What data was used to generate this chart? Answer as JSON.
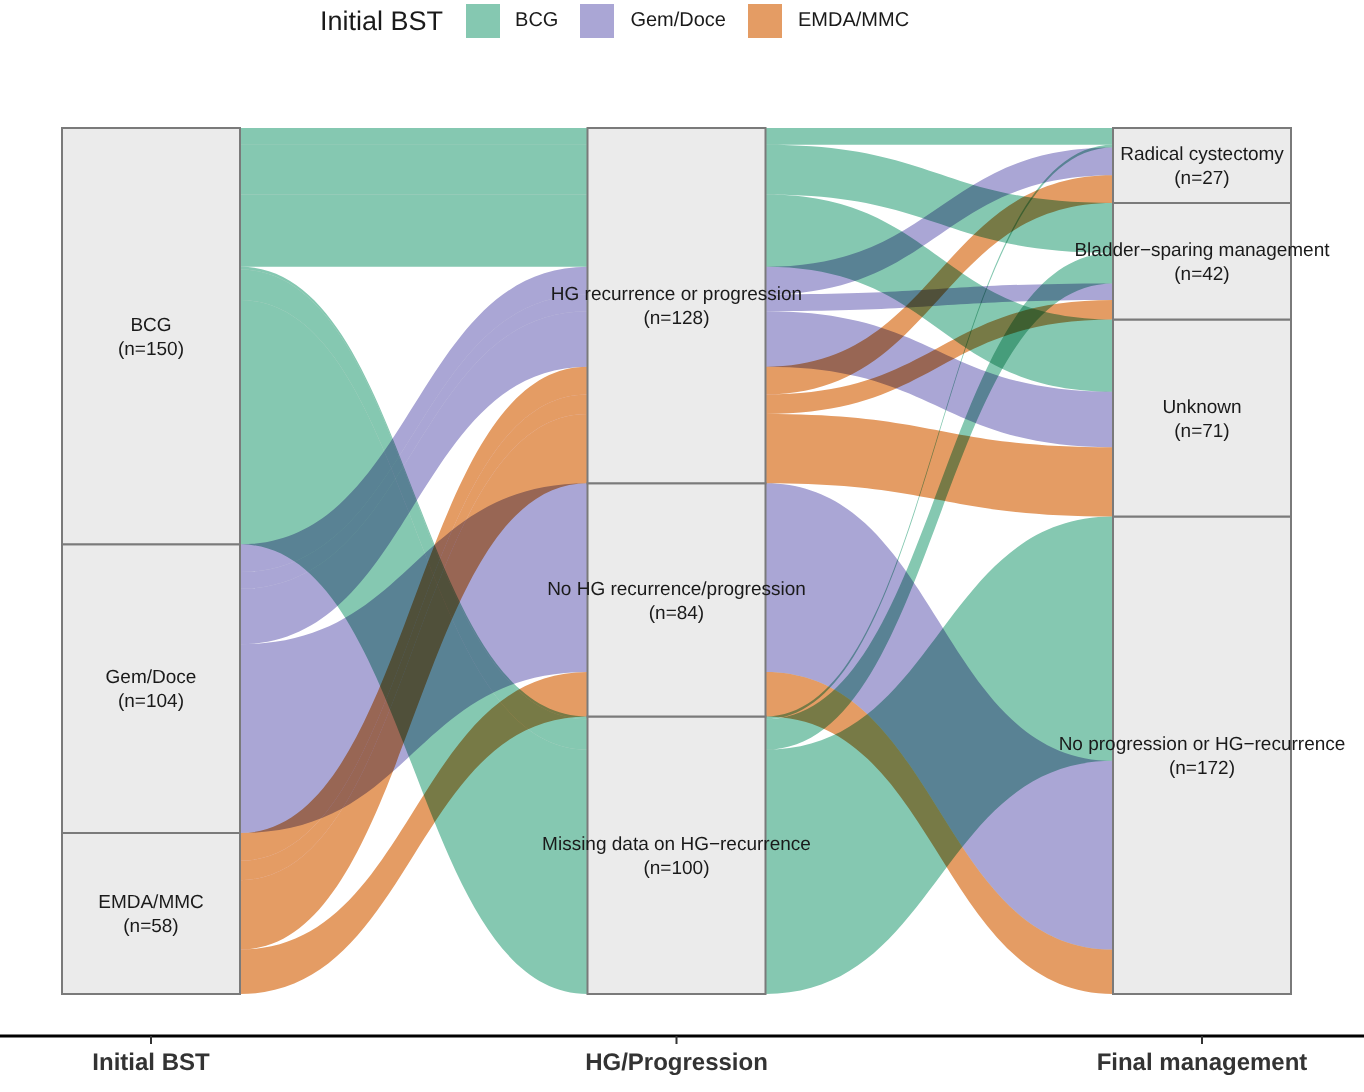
{
  "chart_data": {
    "type": "bar",
    "stacked": true,
    "legend_title": "Initial BST",
    "legend": "top",
    "tick_labels": "x",
    "categories": [
      "Initial BST",
      "HG/Progression",
      "Final management"
    ],
    "series": [
      {
        "type": "bar",
        "name": "EMDA/MMC",
        "color": "#ebebeb",
        "values": [
          58,
          null,
          null
        ],
        "value_labels": [
          "(n=58)",
          null,
          null
        ]
      },
      {
        "type": "bar",
        "name": "Gem/Doce",
        "color": "#ebebeb",
        "values": [
          104,
          null,
          null
        ],
        "value_labels": [
          "(n=104)",
          null,
          null
        ]
      },
      {
        "type": "bar",
        "name": "BCG",
        "color": "#ebebeb",
        "values": [
          150,
          null,
          null
        ],
        "value_labels": [
          "(n=150)",
          null,
          null
        ]
      },
      {
        "type": "bar",
        "name": "Missing data on HG−recurrence",
        "color": "#ebebeb",
        "values": [
          null,
          100,
          null
        ],
        "value_labels": [
          null,
          "(n=100)",
          null
        ]
      },
      {
        "type": "bar",
        "name": "No HG recurrence/progression",
        "color": "#ebebeb",
        "values": [
          null,
          84,
          null
        ],
        "value_labels": [
          null,
          "(n=84)",
          null
        ]
      },
      {
        "type": "bar",
        "name": "HG recurrence or progression",
        "color": "#ebebeb",
        "values": [
          null,
          128,
          null
        ],
        "value_labels": [
          null,
          "(n=128)",
          null
        ]
      },
      {
        "type": "bar",
        "name": "No progression or HG−recurrence",
        "color": "#ebebeb",
        "values": [
          null,
          null,
          172
        ],
        "value_labels": [
          null,
          null,
          "(n=172)"
        ]
      },
      {
        "type": "bar",
        "name": "Unknown",
        "color": "#ebebeb",
        "values": [
          null,
          null,
          71
        ],
        "value_labels": [
          null,
          null,
          "(n=71)"
        ]
      },
      {
        "type": "bar",
        "name": "Bladder−sparing management",
        "color": "#ebebeb",
        "values": [
          null,
          null,
          42
        ],
        "value_labels": [
          null,
          null,
          "(n=42)"
        ]
      },
      {
        "type": "bar",
        "name": "Radical cystectomy",
        "color": "#ebebeb",
        "values": [
          null,
          null,
          27
        ],
        "value_labels": [
          null,
          null,
          "(n=27)"
        ]
      },
      {
        "type": "other",
        "name": "BCG",
        "color": "#85c8b1",
        "values": [
          null,
          null,
          null
        ]
      },
      {
        "type": "other",
        "name": "Gem/Doce",
        "color": "#aaa6d5",
        "values": [
          null,
          null,
          null
        ]
      },
      {
        "type": "other",
        "name": "EMDA/MMC",
        "color": "#e49c64",
        "values": [
          null,
          null,
          null
        ]
      }
    ]
  }
}
